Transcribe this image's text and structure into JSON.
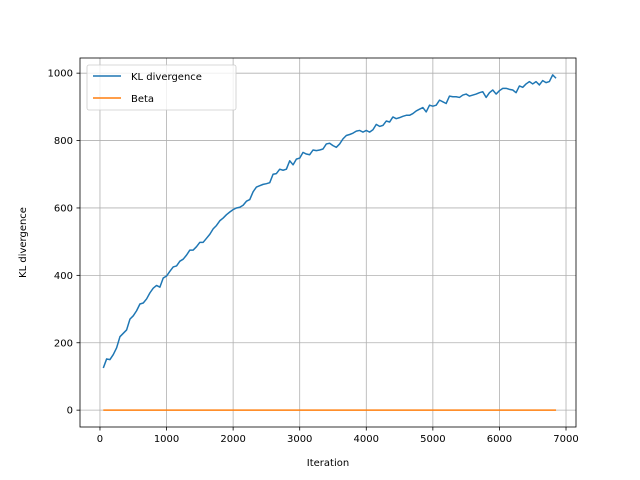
{
  "chart_data": {
    "type": "line",
    "title": "",
    "xlabel": "Iteration",
    "ylabel": "KL divergence",
    "xlim": [
      -300,
      7150
    ],
    "ylim": [
      -50,
      1045
    ],
    "xticks": [
      0,
      1000,
      2000,
      3000,
      4000,
      5000,
      6000,
      7000
    ],
    "yticks": [
      0,
      200,
      400,
      600,
      800,
      1000
    ],
    "grid": true,
    "legend": "top-left",
    "series": [
      {
        "name": "KL divergence",
        "color": "#1f77b4",
        "x": [
          50,
          100,
          150,
          200,
          250,
          300,
          350,
          400,
          450,
          500,
          550,
          600,
          650,
          700,
          750,
          800,
          850,
          900,
          950,
          1000,
          1050,
          1100,
          1150,
          1200,
          1250,
          1300,
          1350,
          1400,
          1450,
          1500,
          1550,
          1600,
          1650,
          1700,
          1750,
          1800,
          1850,
          1900,
          1950,
          2000,
          2050,
          2100,
          2150,
          2200,
          2250,
          2300,
          2350,
          2400,
          2450,
          2500,
          2550,
          2600,
          2650,
          2700,
          2750,
          2800,
          2850,
          2900,
          2950,
          3000,
          3050,
          3100,
          3150,
          3200,
          3250,
          3300,
          3350,
          3400,
          3450,
          3500,
          3550,
          3600,
          3650,
          3700,
          3750,
          3800,
          3850,
          3900,
          3950,
          4000,
          4050,
          4100,
          4150,
          4200,
          4250,
          4300,
          4350,
          4400,
          4450,
          4500,
          4550,
          4600,
          4650,
          4700,
          4750,
          4800,
          4850,
          4900,
          4950,
          5000,
          5050,
          5100,
          5150,
          5200,
          5250,
          5300,
          5350,
          5400,
          5450,
          5500,
          5550,
          5600,
          5650,
          5700,
          5750,
          5800,
          5850,
          5900,
          5950,
          6000,
          6050,
          6100,
          6150,
          6200,
          6250,
          6300,
          6350,
          6400,
          6450,
          6500,
          6550,
          6600,
          6650,
          6700,
          6750,
          6800,
          6850
        ],
        "y": [
          125,
          152,
          150,
          165,
          185,
          218,
          228,
          238,
          270,
          280,
          295,
          315,
          318,
          330,
          348,
          362,
          370,
          365,
          392,
          398,
          412,
          425,
          428,
          442,
          448,
          460,
          475,
          475,
          485,
          498,
          498,
          510,
          522,
          538,
          548,
          562,
          570,
          580,
          588,
          595,
          600,
          602,
          608,
          620,
          625,
          648,
          662,
          666,
          670,
          672,
          675,
          700,
          702,
          715,
          712,
          715,
          740,
          728,
          745,
          748,
          765,
          760,
          758,
          772,
          770,
          772,
          775,
          790,
          792,
          785,
          780,
          790,
          805,
          815,
          818,
          822,
          828,
          830,
          825,
          830,
          825,
          832,
          848,
          842,
          845,
          858,
          855,
          870,
          865,
          868,
          872,
          875,
          875,
          880,
          888,
          893,
          898,
          885,
          905,
          902,
          905,
          920,
          915,
          910,
          932,
          930,
          930,
          928,
          935,
          938,
          932,
          935,
          938,
          942,
          945,
          928,
          942,
          950,
          938,
          948,
          955,
          955,
          952,
          950,
          942,
          962,
          958,
          968,
          975,
          968,
          975,
          965,
          978,
          972,
          975,
          995,
          985
        ]
      },
      {
        "name": "Beta",
        "color": "#ff7f0e",
        "x": [
          50,
          6850
        ],
        "y": [
          0,
          0
        ]
      }
    ]
  }
}
